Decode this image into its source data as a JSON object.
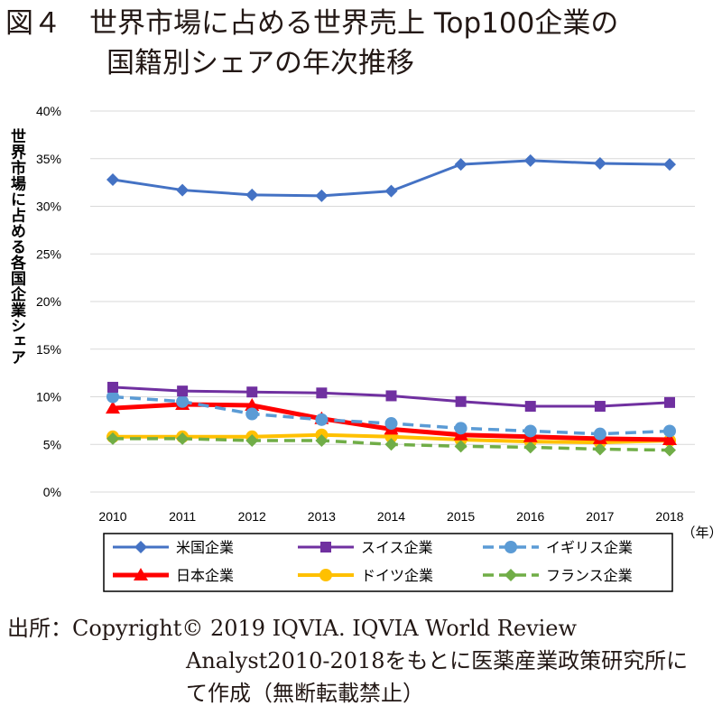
{
  "title_line1": "図４　世界市場に占める世界売上 Top100企業の",
  "title_line2": "国籍別シェアの年次推移",
  "source_line1": "出所：Copyright© 2019 IQVIA. IQVIA World Review",
  "source_line2": "Analyst2010-2018をもとに医薬産業政策研究所に",
  "source_line3": "て作成（無断転載禁止）",
  "chart_data": {
    "type": "line",
    "title": "",
    "ylabel": "世界市場に占める各国企業シェア",
    "xlabel": "（年）",
    "ylim": [
      0,
      40
    ],
    "yticks": [
      "0%",
      "5%",
      "10%",
      "15%",
      "20%",
      "25%",
      "30%",
      "35%",
      "40%"
    ],
    "grid": true,
    "legend_placement": "bottom",
    "x": [
      "2010",
      "2011",
      "2012",
      "2013",
      "2014",
      "2015",
      "2016",
      "2017",
      "2018"
    ],
    "series": [
      {
        "name": "米国企業",
        "color": "#4472C4",
        "marker": "diamond",
        "dash": false,
        "width": 3,
        "values": [
          32.8,
          31.7,
          31.2,
          31.1,
          31.6,
          34.4,
          34.8,
          34.5,
          34.4
        ]
      },
      {
        "name": "スイス企業",
        "color": "#7030A0",
        "marker": "square",
        "dash": false,
        "width": 3,
        "values": [
          11.0,
          10.6,
          10.5,
          10.4,
          10.1,
          9.5,
          9.0,
          9.0,
          9.4
        ]
      },
      {
        "name": "イギリス企業",
        "color": "#5B9BD5",
        "marker": "circle",
        "dash": true,
        "width": 3.5,
        "values": [
          10.0,
          9.5,
          8.2,
          7.6,
          7.2,
          6.7,
          6.4,
          6.1,
          6.4
        ]
      },
      {
        "name": "日本企業",
        "color": "#FF0000",
        "marker": "triangle",
        "dash": false,
        "width": 5,
        "values": [
          8.8,
          9.2,
          9.1,
          7.7,
          6.6,
          6.0,
          5.8,
          5.6,
          5.5
        ]
      },
      {
        "name": "ドイツ企業",
        "color": "#FFC000",
        "marker": "circle",
        "dash": false,
        "width": 4,
        "values": [
          5.8,
          5.8,
          5.8,
          6.0,
          5.8,
          5.5,
          5.3,
          5.2,
          5.4
        ]
      },
      {
        "name": "フランス企業",
        "color": "#70AD47",
        "marker": "diamond",
        "dash": true,
        "width": 3.5,
        "values": [
          5.6,
          5.6,
          5.4,
          5.4,
          5.0,
          4.8,
          4.7,
          4.5,
          4.4
        ]
      }
    ]
  }
}
